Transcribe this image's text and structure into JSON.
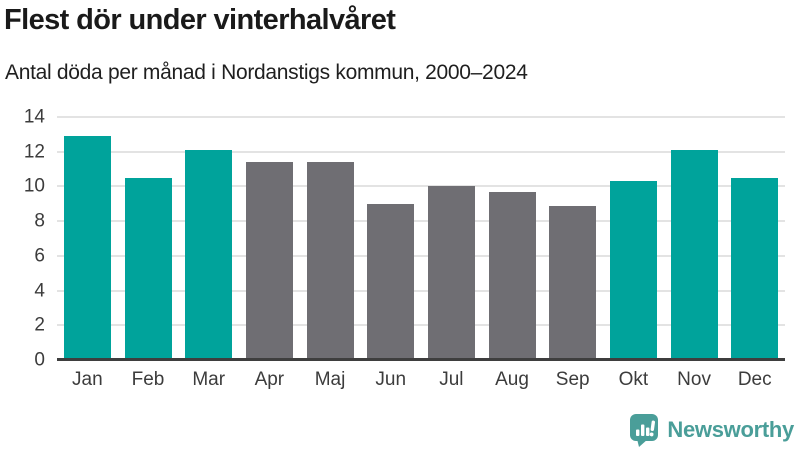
{
  "header": {
    "title": "Flest dör under vinterhalvåret",
    "subtitle": "Antal döda per månad i Nordanstigs kommun, 2000–2024"
  },
  "chart_data": {
    "type": "bar",
    "title": "Flest dör under vinterhalvåret",
    "subtitle": "Antal döda per månad i Nordanstigs kommun, 2000–2024",
    "categories": [
      "Jan",
      "Feb",
      "Mar",
      "Apr",
      "Maj",
      "Jun",
      "Jul",
      "Aug",
      "Sep",
      "Okt",
      "Nov",
      "Dec"
    ],
    "values": [
      12.9,
      10.5,
      12.1,
      11.4,
      11.4,
      9.0,
      10.0,
      9.7,
      8.9,
      10.3,
      12.1,
      10.5
    ],
    "highlighted_categories": [
      "Jan",
      "Feb",
      "Mar",
      "Okt",
      "Nov",
      "Dec"
    ],
    "xlabel": "",
    "ylabel": "",
    "ylim": [
      0,
      14
    ],
    "yticks": [
      0,
      2,
      4,
      6,
      8,
      10,
      12,
      14
    ],
    "grid": true,
    "legend": "none",
    "colors": {
      "highlight_bar": "#00a39b",
      "default_bar": "#6f6e73",
      "gridline": "#e3e3e3",
      "axis_line": "#3e3e3e",
      "tick_text": "#3c3c3c"
    }
  },
  "footer": {
    "brand": "Newsworthy",
    "logo_icon": "newsworthy-speech-bubble-bar-chart-icon",
    "brand_color": "#4a9e99"
  }
}
